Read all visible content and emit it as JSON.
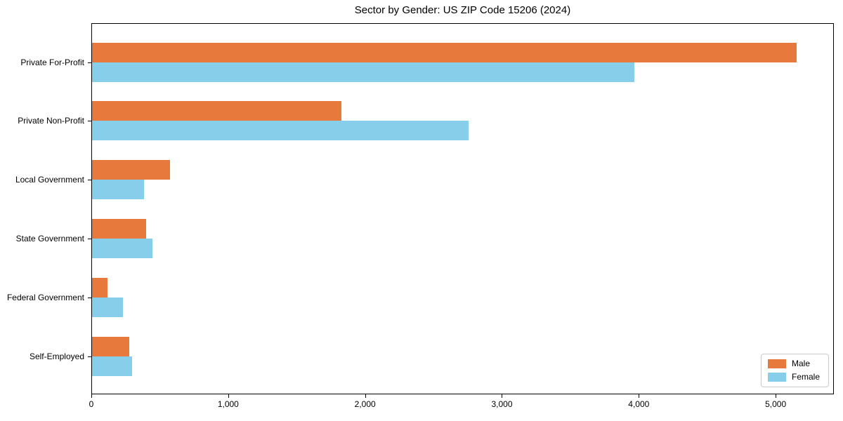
{
  "title": "Sector by Gender: US ZIP Code 15206 (2024)",
  "chart_data": {
    "type": "bar",
    "orientation": "horizontal",
    "title": "Sector by Gender: US ZIP Code 15206 (2024)",
    "categories": [
      "Private For-Profit",
      "Private Non-Profit",
      "Local Government",
      "State Government",
      "Federal Government",
      "Self-Employed"
    ],
    "series": [
      {
        "name": "Male",
        "color": "#e8793d",
        "values": [
          5150,
          1820,
          570,
          395,
          115,
          270
        ]
      },
      {
        "name": "Female",
        "color": "#87ceeb",
        "values": [
          3965,
          2750,
          380,
          440,
          225,
          295
        ]
      }
    ],
    "xlabel": "",
    "ylabel": "",
    "xlim": [
      0,
      5415
    ],
    "x_ticks": [
      0,
      1000,
      2000,
      3000,
      4000,
      5000
    ],
    "x_tick_labels": [
      "0",
      "1,000",
      "2,000",
      "3,000",
      "4,000",
      "5,000"
    ],
    "grid": false,
    "legend_position": "lower right",
    "background_color": "#ffffff",
    "axis_color": "#000000"
  }
}
